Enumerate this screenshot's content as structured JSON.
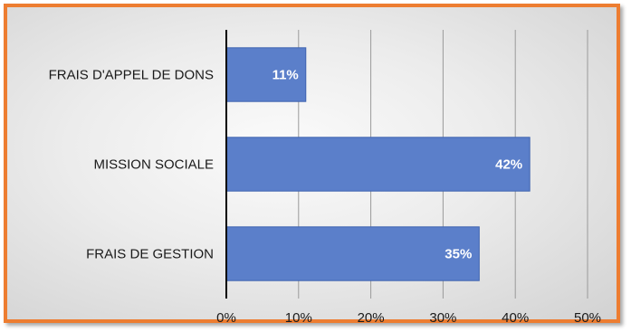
{
  "colors": {
    "border": "#ed7d31",
    "bar_fill": "#5b7fca",
    "bar_stroke": "#3e63b0",
    "grid": "#9a9a9a",
    "axis": "#000000"
  },
  "chart_data": {
    "type": "bar",
    "orientation": "horizontal",
    "categories": [
      "FRAIS D'APPEL DE DONS",
      "MISSION SOCIALE",
      "FRAIS DE GESTION"
    ],
    "values": [
      11,
      42,
      35
    ],
    "data_labels": [
      "11%",
      "42%",
      "35%"
    ],
    "xlim": [
      0,
      50
    ],
    "x_ticks": [
      0,
      10,
      20,
      30,
      40,
      50
    ],
    "x_tick_labels": [
      "0%",
      "10%",
      "20%",
      "30%",
      "40%",
      "50%"
    ],
    "title": "",
    "xlabel": "",
    "ylabel": "",
    "grid": true,
    "legend": "none"
  }
}
